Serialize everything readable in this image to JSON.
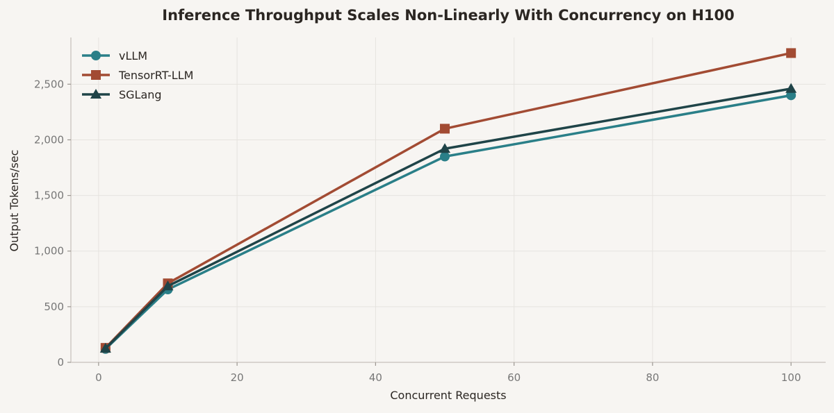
{
  "chart_data": {
    "type": "line",
    "title": "Inference Throughput Scales Non-Linearly With Concurrency on H100",
    "xlabel": "Concurrent Requests",
    "ylabel": "Output Tokens/sec",
    "x": [
      1,
      10,
      50,
      100
    ],
    "xlim": [
      -4,
      105
    ],
    "ylim": [
      0,
      2920
    ],
    "xticks": [
      0,
      20,
      40,
      60,
      80,
      100
    ],
    "xtick_labels": [
      "0",
      "20",
      "40",
      "60",
      "80",
      "100"
    ],
    "yticks": [
      0,
      500,
      1000,
      1500,
      2000,
      2500
    ],
    "ytick_labels": [
      "0",
      "500",
      "1,000",
      "1,500",
      "2,000",
      "2,500"
    ],
    "grid": true,
    "legend_position": "top-left",
    "series": [
      {
        "name": "vLLM",
        "values": [
          120,
          655,
          1850,
          2400
        ],
        "color": "#2a7f88",
        "marker": "circle"
      },
      {
        "name": "TensorRT-LLM",
        "values": [
          130,
          710,
          2100,
          2780
        ],
        "color": "#a24b33",
        "marker": "square"
      },
      {
        "name": "SGLang",
        "values": [
          125,
          685,
          1920,
          2460
        ],
        "color": "#1f4448",
        "marker": "triangle"
      }
    ]
  }
}
